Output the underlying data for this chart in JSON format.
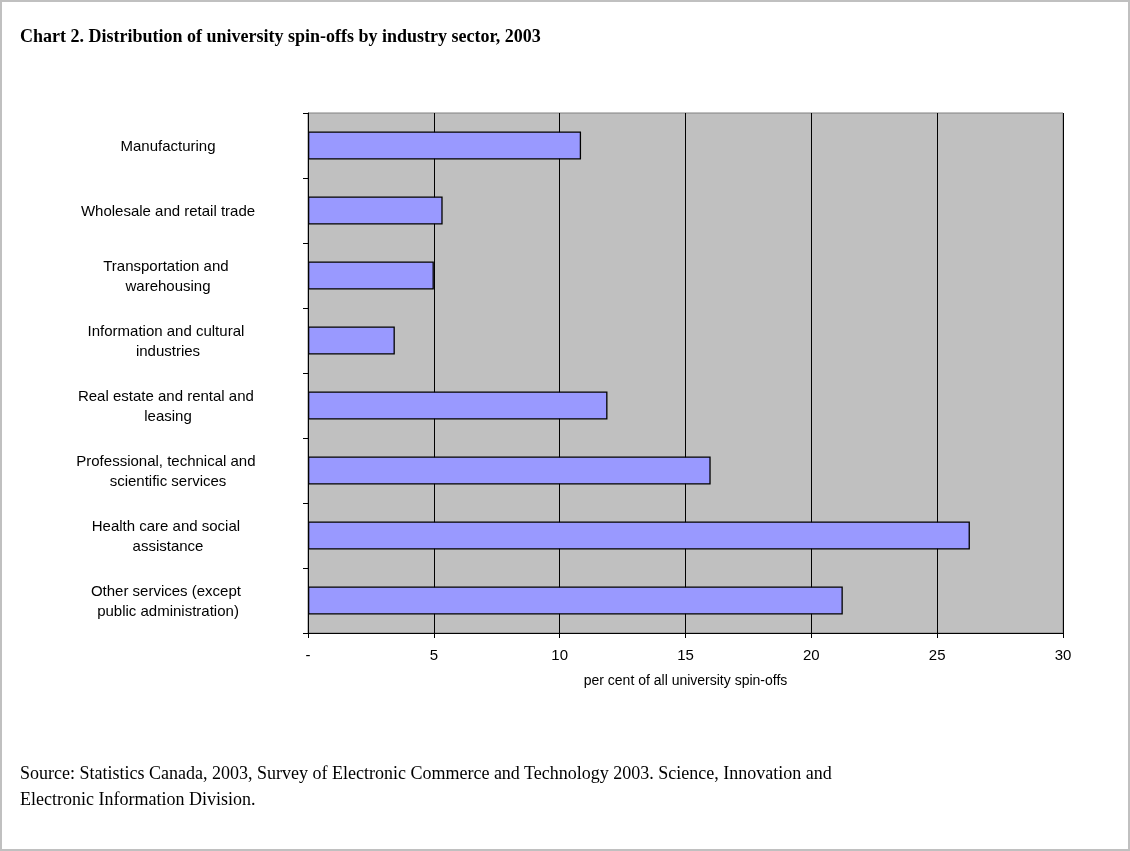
{
  "chart_data": {
    "type": "bar",
    "orientation": "horizontal",
    "title": "Chart 2. Distribution of university spin-offs by industry sector, 2003",
    "categories": [
      "Manufacturing",
      "Wholesale and retail trade",
      "Transportation and warehousing",
      "Information and cultural industries",
      "Real estate and rental and leasing",
      "Professional, technical and scientific services",
      "Health care and social assistance",
      "Other services (except public administration)"
    ],
    "values": [
      10.85,
      5.35,
      5.0,
      3.45,
      11.9,
      16.0,
      26.3,
      21.25
    ],
    "color": "#9999ff",
    "xlabel": "per cent of all university spin-offs",
    "xlim": [
      0,
      30
    ],
    "xticks": [
      {
        "value": 0,
        "label": "-"
      },
      5,
      10,
      15,
      20,
      25,
      30
    ],
    "grid": "x",
    "annotations": [
      "Source: Statistics Canada, 2003, Survey of Electronic Commerce and Technology 2003. Science, Innovation and Electronic Information Division."
    ]
  }
}
